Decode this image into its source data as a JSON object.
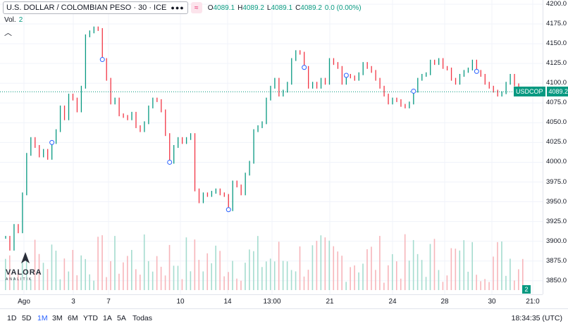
{
  "symbol": {
    "title": "U.S. DOLLAR / COLOMBIAN PESO · 30 · ICE",
    "menu_icon": "more-dots-icon",
    "flag_icon": "approx-icon",
    "flag_text": "≈"
  },
  "ohlc": {
    "o_key": "O",
    "o": "4089.1",
    "h_key": "H",
    "h": "4089.2",
    "l_key": "L",
    "l": "4089.1",
    "c_key": "C",
    "c": "4089.2",
    "change": "0.0 (0.00%)"
  },
  "volume": {
    "label": "Vol.",
    "value": "2",
    "badge": "2"
  },
  "price_tag": {
    "symbol": "USDCOP",
    "value": "4089.2"
  },
  "price_axis": [
    "4200.0",
    "4175.0",
    "4150.0",
    "4125.0",
    "4100.0",
    "4075.0",
    "4050.0",
    "4025.0",
    "4000.0",
    "3975.0",
    "3950.0",
    "3925.0",
    "3900.0",
    "3875.0",
    "3850.0"
  ],
  "time_axis": [
    "Ago",
    "3",
    "7",
    "10",
    "14",
    "13:00",
    "21",
    "24",
    "28",
    "30",
    "21:0"
  ],
  "ranges": [
    "1D",
    "5D",
    "1M",
    "3M",
    "6M",
    "YTD",
    "1A",
    "5A",
    "Todas"
  ],
  "active_range": "1M",
  "clock": "18:34:35 (UTC)",
  "logo": {
    "brand": "VALORA",
    "sub": "ANALITIK"
  },
  "colors": {
    "up": "#089981",
    "down": "#f23645",
    "up_vol": "#a5dccf",
    "down_vol": "#f7b5ba"
  },
  "chart_data": {
    "type": "line",
    "series": [
      {
        "values": [
          3905,
          3890,
          3920,
          3912,
          3960,
          4010,
          4030,
          4020,
          4008,
          4015,
          4005,
          4025,
          4040,
          4070,
          4055,
          4085,
          4080,
          4065,
          4095,
          4160,
          4165,
          4170,
          4168,
          4130,
          4105,
          4075,
          4080,
          4060,
          4058,
          4055,
          4062,
          4045,
          4040,
          4050,
          4070,
          4080,
          4078,
          4065,
          4035,
          4000,
          4020,
          4030,
          4025,
          4030,
          4035,
          3965,
          3950,
          3960,
          3958,
          3962,
          3965,
          3960,
          3958,
          3940,
          3975,
          3970,
          3960,
          3985,
          4000,
          4040,
          4045,
          4050,
          4080,
          4095,
          4105,
          4085,
          4090,
          4100,
          4130,
          4140,
          4138,
          4120,
          4095,
          4100,
          4095,
          4105,
          4100,
          4130,
          4125,
          4120,
          4100,
          4110,
          4108,
          4105,
          4112,
          4125,
          4120,
          4115,
          4105,
          4095,
          4085,
          4075,
          4080,
          4078,
          4072,
          4070,
          4075,
          4090,
          4105,
          4110,
          4112,
          4128,
          4125,
          4130,
          4120,
          4118,
          4105,
          4100,
          4110,
          4115,
          4118,
          4128,
          4115,
          4110,
          4100,
          4095,
          4090,
          4085,
          4088,
          4100,
          4110,
          4098,
          4092,
          4089.2
        ]
      }
    ],
    "ylim": [
      3840,
      4200
    ],
    "markers_at_index": [
      11,
      23,
      39,
      53,
      71,
      81,
      97,
      112
    ]
  }
}
